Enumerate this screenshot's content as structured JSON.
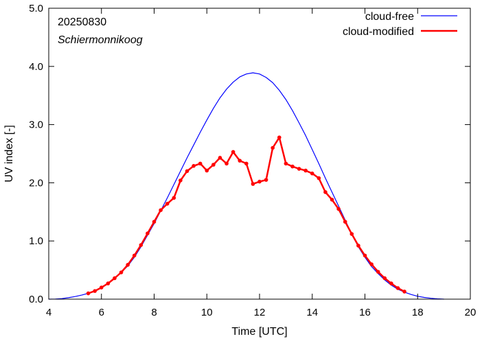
{
  "chart_data": {
    "type": "line",
    "date_label": "20250830",
    "location": "Schiermonnikoog",
    "xlabel": "Time  [UTC]",
    "ylabel": "UV index  [-]",
    "xlim": [
      4,
      20
    ],
    "ylim": [
      0,
      5
    ],
    "x_ticks": [
      4,
      6,
      8,
      10,
      12,
      14,
      16,
      18,
      20
    ],
    "x_tick_labels": [
      "4",
      "6",
      "8",
      "10",
      "12",
      "14",
      "16",
      "18",
      "20"
    ],
    "y_ticks": [
      0,
      1,
      2,
      3,
      4,
      5
    ],
    "y_tick_labels": [
      "0.0",
      "1.0",
      "2.0",
      "3.0",
      "4.0",
      "5.0"
    ],
    "legend_position": "top-right",
    "series": [
      {
        "name": "cloud-free",
        "color": "#0000ff",
        "style": "line",
        "peak_time": 11.6,
        "peak_value": 3.89,
        "x": [
          4.0,
          4.25,
          4.5,
          4.75,
          5.0,
          5.25,
          5.5,
          5.75,
          6.0,
          6.25,
          6.5,
          6.75,
          7.0,
          7.25,
          7.5,
          7.75,
          8.0,
          8.25,
          8.5,
          8.75,
          9.0,
          9.25,
          9.5,
          9.75,
          10.0,
          10.25,
          10.5,
          10.75,
          11.0,
          11.25,
          11.5,
          11.75,
          12.0,
          12.25,
          12.5,
          12.75,
          13.0,
          13.25,
          13.5,
          13.75,
          14.0,
          14.25,
          14.5,
          14.75,
          15.0,
          15.25,
          15.5,
          15.75,
          16.0,
          16.25,
          16.5,
          16.75,
          17.0,
          17.25,
          17.5,
          17.75,
          18.0,
          18.25,
          18.5,
          18.75,
          19.0
        ],
        "y": [
          0.0,
          0.002,
          0.01,
          0.025,
          0.045,
          0.07,
          0.1,
          0.14,
          0.2,
          0.27,
          0.36,
          0.46,
          0.57,
          0.72,
          0.9,
          1.1,
          1.3,
          1.52,
          1.74,
          1.97,
          2.2,
          2.43,
          2.65,
          2.87,
          3.08,
          3.28,
          3.46,
          3.61,
          3.73,
          3.82,
          3.87,
          3.89,
          3.87,
          3.81,
          3.72,
          3.59,
          3.43,
          3.24,
          3.03,
          2.81,
          2.57,
          2.33,
          2.08,
          1.84,
          1.6,
          1.36,
          1.12,
          0.9,
          0.72,
          0.56,
          0.44,
          0.33,
          0.24,
          0.17,
          0.12,
          0.08,
          0.05,
          0.03,
          0.015,
          0.006,
          0.0
        ]
      },
      {
        "name": "cloud-modified",
        "color": "#ff0000",
        "style": "line-markers",
        "x": [
          5.5,
          5.75,
          6.0,
          6.25,
          6.5,
          6.75,
          7.0,
          7.25,
          7.5,
          7.75,
          8.0,
          8.25,
          8.5,
          8.75,
          9.0,
          9.25,
          9.5,
          9.75,
          10.0,
          10.25,
          10.5,
          10.75,
          11.0,
          11.25,
          11.5,
          11.75,
          12.0,
          12.25,
          12.5,
          12.75,
          13.0,
          13.25,
          13.5,
          13.75,
          14.0,
          14.25,
          14.5,
          14.75,
          15.0,
          15.25,
          15.5,
          15.75,
          16.0,
          16.25,
          16.5,
          16.75,
          17.0,
          17.25,
          17.5
        ],
        "y": [
          0.1,
          0.14,
          0.2,
          0.27,
          0.36,
          0.46,
          0.59,
          0.75,
          0.93,
          1.13,
          1.33,
          1.53,
          1.64,
          1.74,
          2.04,
          2.2,
          2.29,
          2.33,
          2.21,
          2.31,
          2.43,
          2.33,
          2.53,
          2.38,
          2.33,
          1.98,
          2.02,
          2.05,
          2.6,
          2.78,
          2.33,
          2.28,
          2.24,
          2.21,
          2.16,
          2.08,
          1.84,
          1.71,
          1.55,
          1.33,
          1.12,
          0.92,
          0.75,
          0.6,
          0.47,
          0.36,
          0.27,
          0.19,
          0.13
        ]
      }
    ]
  }
}
